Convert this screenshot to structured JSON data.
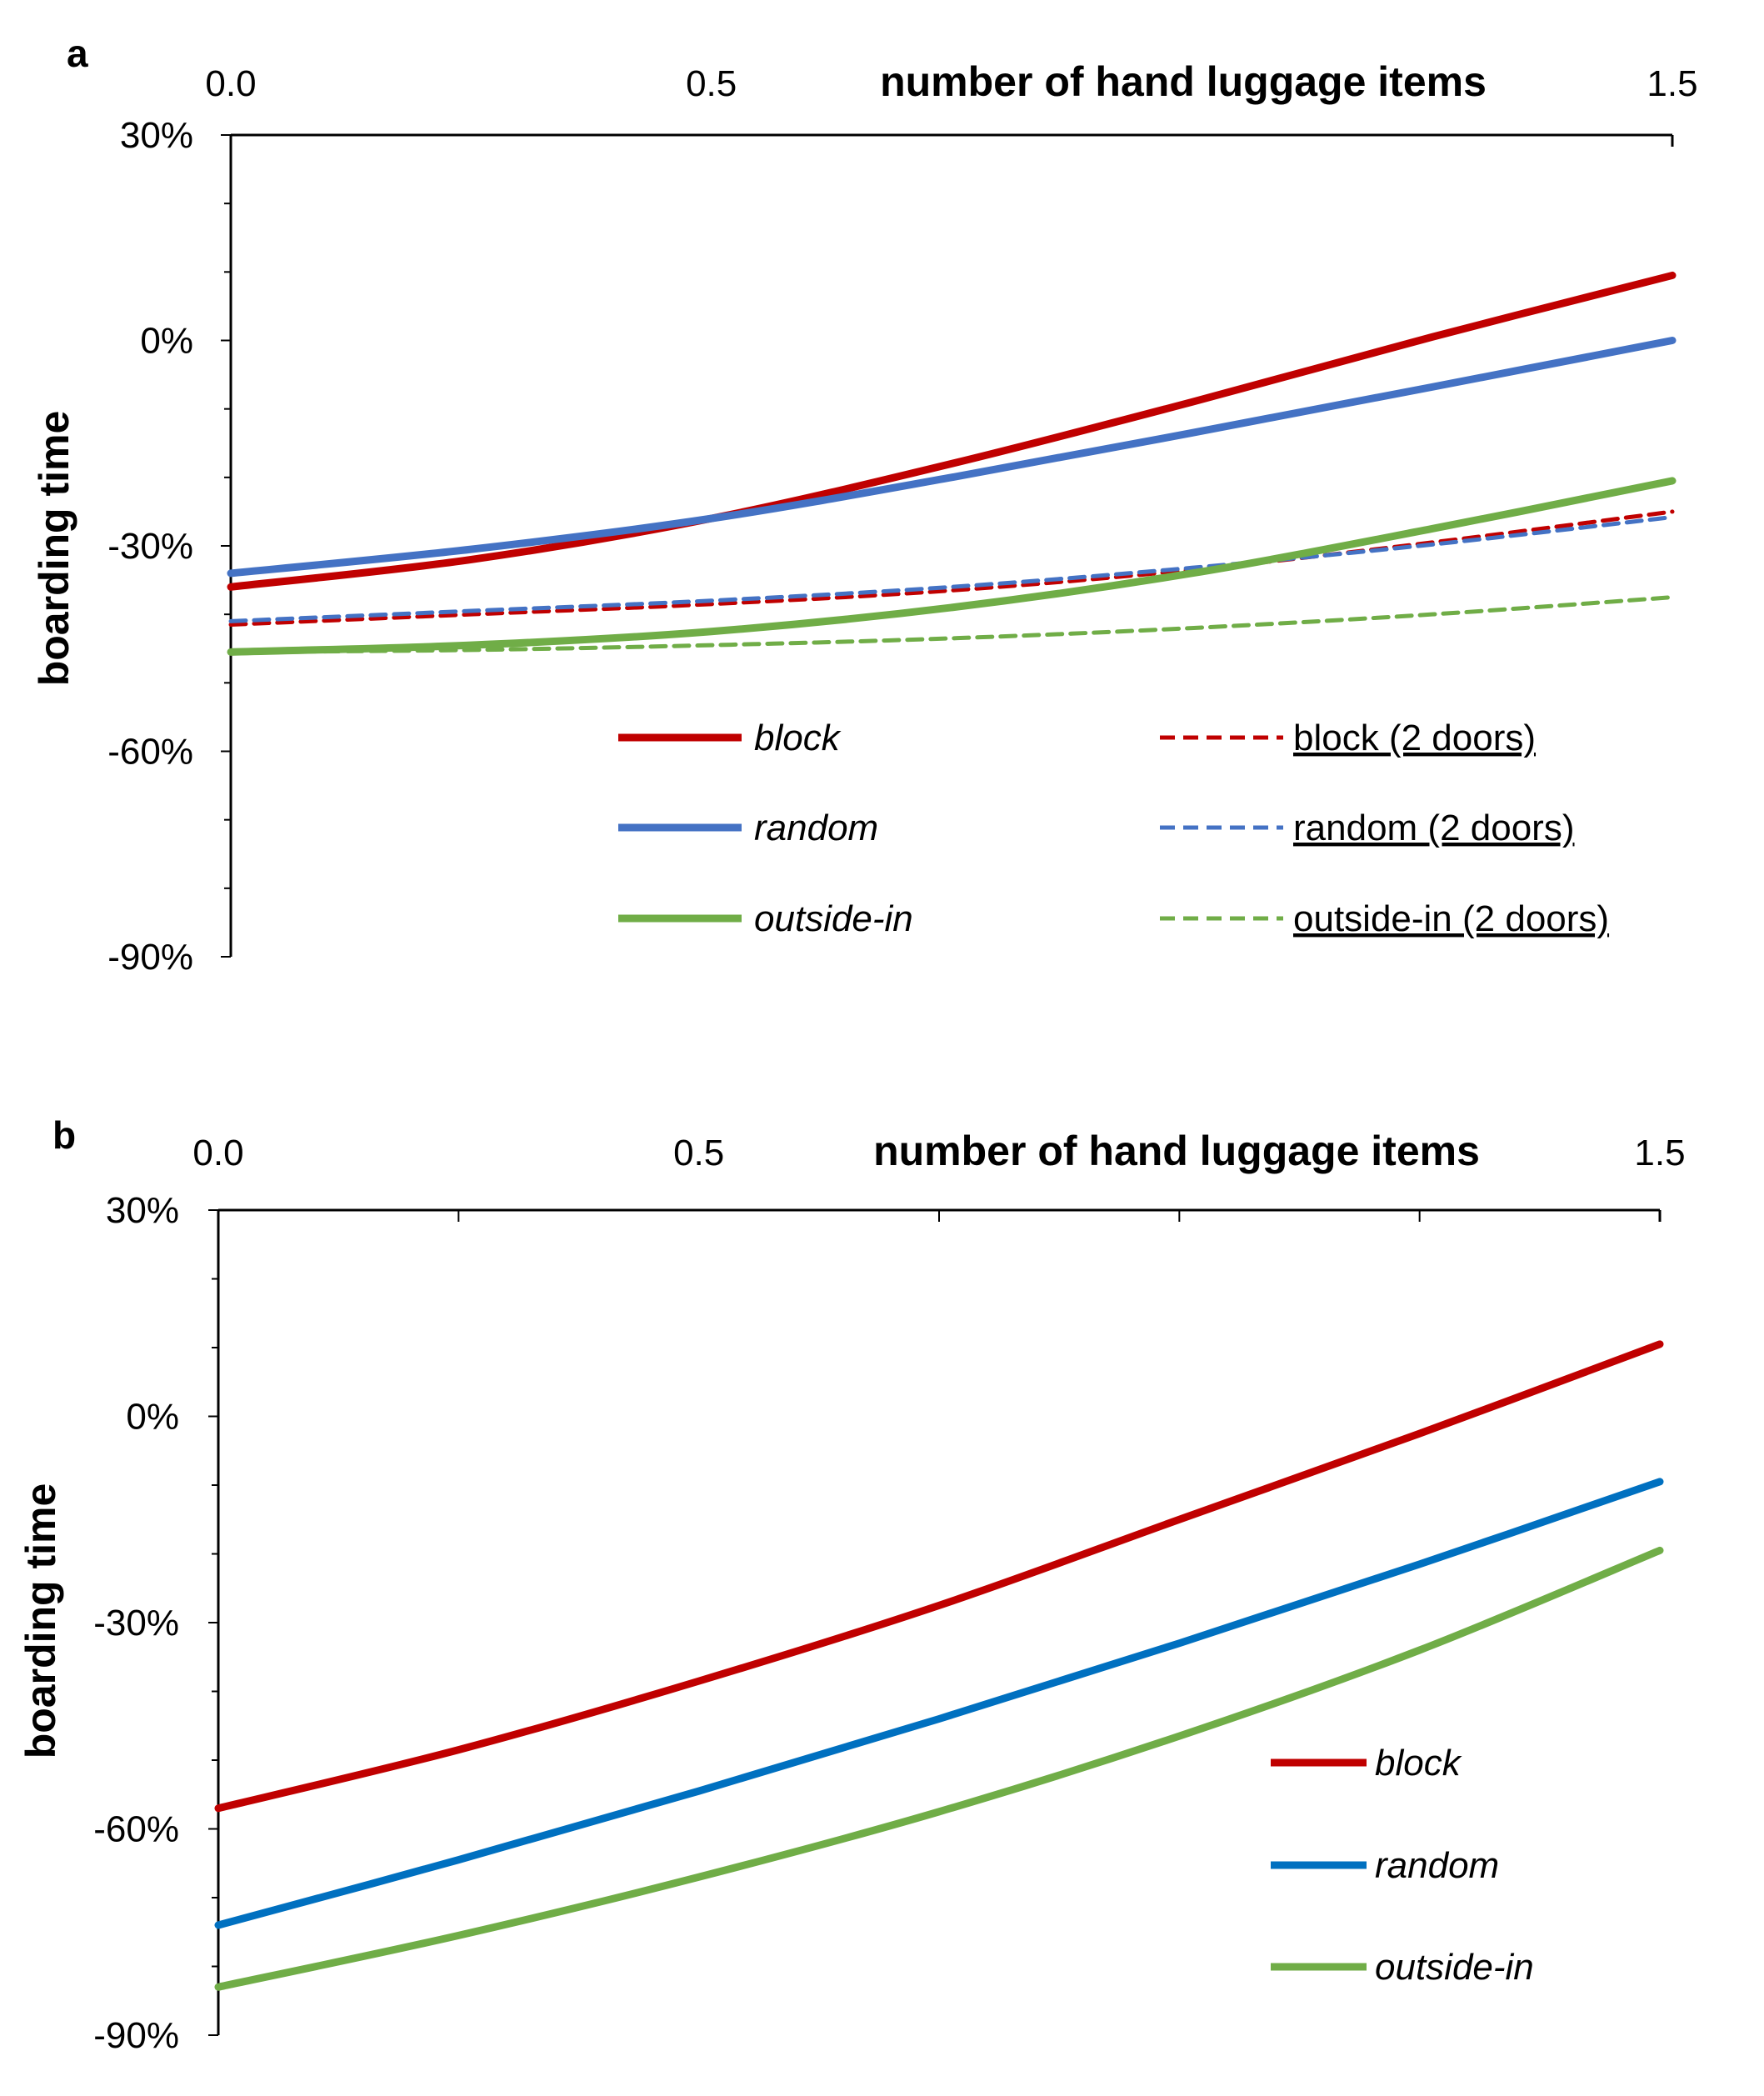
{
  "chart_data": [
    {
      "panel": "a",
      "type": "line",
      "xlabel": "number of hand luggage items",
      "ylabel": "boarding time",
      "xlim": [
        0,
        1.5
      ],
      "ylim": [
        -90,
        30
      ],
      "x_ticks": [
        "0.0",
        "0.5",
        "1.5"
      ],
      "y_ticks": [
        "30%",
        "0%",
        "-30%",
        "-60%",
        "-90%"
      ],
      "y_tick_values": [
        30,
        0,
        -30,
        -60,
        -90
      ],
      "x_tick_values": [
        0,
        0.5,
        1.5
      ],
      "x": [
        0,
        0.25,
        0.5,
        0.75,
        1.0,
        1.25,
        1.5
      ],
      "series": [
        {
          "name": "block",
          "color": "#C00000",
          "dash": false,
          "italic": true,
          "underline": false,
          "values": [
            -36,
            -32,
            -26,
            -18,
            -9,
            0.5,
            9.5
          ]
        },
        {
          "name": "random",
          "color": "#4472C4",
          "dash": false,
          "italic": true,
          "underline": false,
          "values": [
            -34,
            -30.5,
            -26,
            -20,
            -13.5,
            -6.8,
            0
          ]
        },
        {
          "name": "outside-in",
          "color": "#70AD47",
          "dash": false,
          "italic": true,
          "underline": false,
          "values": [
            -45.5,
            -44.5,
            -42.5,
            -39,
            -34,
            -27.5,
            -20.5
          ]
        },
        {
          "name": "block (2 doors)",
          "color": "#C00000",
          "dash": true,
          "italic": false,
          "underline": true,
          "values": [
            -41.5,
            -40,
            -38.5,
            -36.5,
            -33.5,
            -29.5,
            -25
          ]
        },
        {
          "name": "random (2 doors)",
          "color": "#4472C4",
          "dash": true,
          "italic": false,
          "underline": true,
          "values": [
            -41,
            -39.5,
            -38,
            -36,
            -33.2,
            -29.8,
            -25.8
          ]
        },
        {
          "name": "outside-in (2 doors)",
          "color": "#70AD47",
          "dash": true,
          "italic": false,
          "underline": true,
          "values": [
            -45.5,
            -45.2,
            -44.5,
            -43.5,
            -42,
            -40,
            -37.5
          ]
        }
      ]
    },
    {
      "panel": "b",
      "type": "line",
      "xlabel": "number of hand luggage items",
      "ylabel": "boarding time",
      "xlim": [
        0,
        1.5
      ],
      "ylim": [
        -90,
        30
      ],
      "x_ticks": [
        "0.0",
        "0.5",
        "1.5"
      ],
      "y_ticks": [
        "30%",
        "0%",
        "-30%",
        "-60%",
        "-90%"
      ],
      "y_tick_values": [
        30,
        0,
        -30,
        -60,
        -90
      ],
      "x_tick_values": [
        0,
        0.5,
        1.5
      ],
      "x": [
        0,
        0.25,
        0.5,
        0.75,
        1.0,
        1.25,
        1.5
      ],
      "series": [
        {
          "name": "block",
          "color": "#C00000",
          "dash": false,
          "italic": true,
          "underline": false,
          "values": [
            -57,
            -48.5,
            -38.5,
            -27.5,
            -15,
            -2.5,
            10.5
          ]
        },
        {
          "name": "random",
          "color": "#0070C0",
          "dash": false,
          "italic": true,
          "underline": false,
          "values": [
            -74,
            -64.5,
            -54.5,
            -44,
            -33,
            -21.5,
            -9.5
          ]
        },
        {
          "name": "outside-in",
          "color": "#70AD47",
          "dash": false,
          "italic": true,
          "underline": false,
          "values": [
            -83,
            -75.5,
            -67,
            -57.5,
            -46.5,
            -34,
            -19.5
          ]
        }
      ]
    }
  ]
}
